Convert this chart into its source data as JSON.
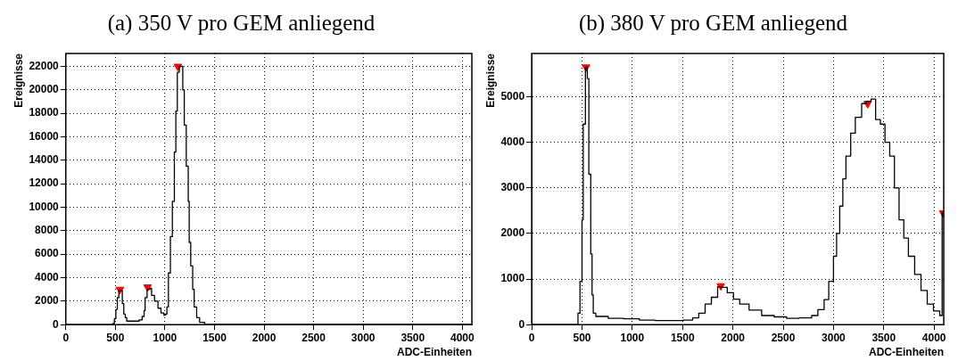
{
  "chart_data": [
    {
      "type": "step",
      "title": "(a) 350 V pro GEM anliegend",
      "xlabel": "ADC-Einheiten",
      "ylabel": "Ereignisse",
      "xlim": [
        0,
        4096
      ],
      "ylim": [
        0,
        23100
      ],
      "xticks": [
        0,
        500,
        1000,
        1500,
        2000,
        2500,
        3000,
        3500,
        4000
      ],
      "yticks": [
        0,
        2000,
        4000,
        6000,
        8000,
        10000,
        12000,
        14000,
        16000,
        18000,
        20000,
        22000
      ],
      "grid": true,
      "legend": false,
      "series": [
        {
          "type": "step",
          "color": "#000000",
          "x": [
            0,
            450,
            475,
            490,
            505,
            520,
            535,
            570,
            585,
            600,
            615,
            740,
            770,
            790,
            800,
            820,
            850,
            865,
            895,
            930,
            960,
            990,
            1005,
            1020,
            1035,
            1055,
            1075,
            1095,
            1110,
            1125,
            1145,
            1180,
            1195,
            1215,
            1235,
            1245,
            1260,
            1280,
            1295,
            1320,
            1350,
            1400,
            4096
          ],
          "values": [
            0,
            0,
            100,
            500,
            1300,
            2300,
            2900,
            1800,
            900,
            600,
            300,
            400,
            700,
            1200,
            2300,
            3000,
            3100,
            2500,
            2000,
            1400,
            1000,
            800,
            900,
            1500,
            4400,
            7500,
            10500,
            14700,
            18200,
            21500,
            22000,
            20000,
            17000,
            13500,
            10500,
            7000,
            5000,
            3000,
            1500,
            600,
            200,
            30,
            0
          ]
        },
        {
          "type": "scatter",
          "color": "#ff0000",
          "marker": "triangle",
          "x": [
            545,
            825,
            1130
          ],
          "values": [
            3000,
            3200,
            22000
          ]
        }
      ]
    },
    {
      "type": "step",
      "title": "(b) 380 V pro GEM anliegend",
      "xlabel": "ADC-Einheiten",
      "ylabel": "Ereignisse",
      "xlim": [
        0,
        4096
      ],
      "ylim": [
        0,
        5950
      ],
      "xticks": [
        0,
        500,
        1000,
        1500,
        2000,
        2500,
        3000,
        3500,
        4000
      ],
      "yticks": [
        0,
        1000,
        2000,
        3000,
        4000,
        5000
      ],
      "grid": true,
      "legend": false,
      "series": [
        {
          "type": "step",
          "color": "#000000",
          "x": [
            0,
            450,
            460,
            480,
            500,
            512,
            534,
            553,
            568,
            587,
            600,
            612,
            637,
            760,
            916,
            1071,
            1227,
            1382,
            1506,
            1600,
            1661,
            1724,
            1786,
            1848,
            1882,
            1944,
            2006,
            2068,
            2161,
            2286,
            2410,
            2534,
            2658,
            2783,
            2845,
            2907,
            2953,
            3000,
            3031,
            3062,
            3093,
            3124,
            3171,
            3217,
            3280,
            3326,
            3373,
            3419,
            3466,
            3512,
            3559,
            3606,
            3652,
            3699,
            3745,
            3807,
            3870,
            3932,
            3994,
            4056,
            4080,
            4096
          ],
          "values": [
            0,
            0,
            250,
            950,
            2300,
            4400,
            5650,
            5400,
            3300,
            1550,
            650,
            250,
            180,
            140,
            130,
            100,
            90,
            90,
            100,
            150,
            250,
            450,
            600,
            830,
            820,
            700,
            560,
            450,
            320,
            200,
            170,
            140,
            150,
            200,
            330,
            550,
            950,
            1500,
            2000,
            2600,
            3200,
            3700,
            4200,
            4550,
            4850,
            4900,
            4950,
            4500,
            4400,
            4000,
            3700,
            3000,
            2300,
            1900,
            1500,
            1100,
            750,
            450,
            300,
            200,
            2450,
            2450
          ]
        },
        {
          "type": "scatter",
          "color": "#ff0000",
          "marker": "triangle",
          "x": [
            540,
            1880,
            3340,
            4090
          ],
          "values": [
            5650,
            850,
            4850,
            2450
          ]
        }
      ]
    }
  ]
}
